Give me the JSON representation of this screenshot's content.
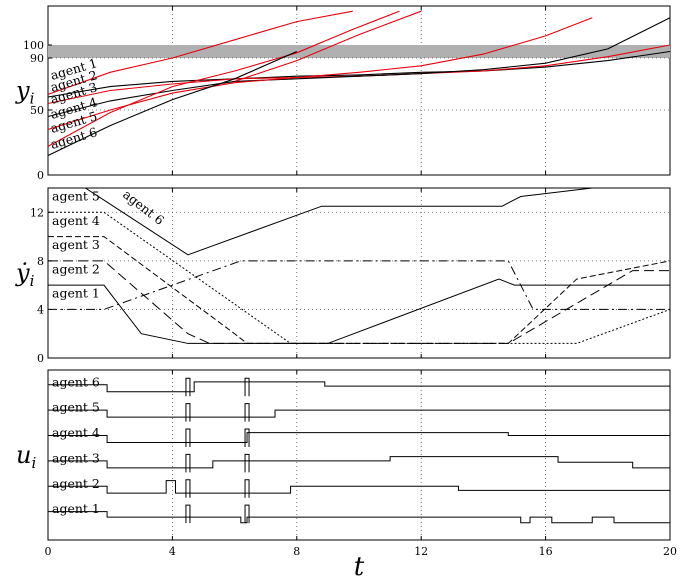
{
  "chart_data": [
    {
      "type": "line",
      "title": "",
      "xlabel": "",
      "ylabel_main": "y",
      "ylabel_sub": "i",
      "xlim": [
        0,
        20
      ],
      "ylim": [
        0,
        130
      ],
      "yticks": [
        "0",
        "50",
        "90",
        "100"
      ],
      "grid": "dotted",
      "band": {
        "y0": 90,
        "y1": 100,
        "color": "#b0b0b0"
      },
      "series": [
        {
          "name": "agent 1",
          "color": "#000000",
          "x": [
            0,
            2,
            4,
            6,
            8,
            10,
            12,
            14,
            16,
            18,
            20
          ],
          "y": [
            60,
            68,
            72,
            74,
            76,
            77,
            79,
            80,
            83,
            88,
            95
          ]
        },
        {
          "name": "agent 2",
          "color": "#e8000b",
          "x": [
            0,
            2,
            4,
            6,
            8,
            10,
            12,
            14,
            16,
            18,
            20
          ],
          "y": [
            55,
            65,
            70,
            74,
            75,
            76,
            78,
            80,
            84,
            91,
            100
          ]
        },
        {
          "name": "agent 3",
          "color": "#000000",
          "x": [
            0,
            2,
            4,
            6,
            8,
            10,
            12,
            14,
            16,
            18,
            20
          ],
          "y": [
            45,
            57,
            65,
            72,
            74,
            76,
            78,
            81,
            86,
            97,
            121
          ]
        },
        {
          "name": "agent 4",
          "color": "#e8000b",
          "x": [
            0,
            2,
            4,
            6,
            8,
            10,
            12,
            14,
            16,
            17.5
          ],
          "y": [
            35,
            50,
            63,
            71,
            75,
            79,
            84,
            93,
            107,
            121
          ]
        },
        {
          "name": "agent 5",
          "color": "#e8000b",
          "x": [
            0,
            2,
            4,
            6,
            8,
            9.8,
            11.3
          ],
          "y": [
            22,
            48,
            68,
            80,
            94,
            112,
            126
          ]
        },
        {
          "name": "agent 6",
          "color": "#000000",
          "x": [
            0,
            2,
            4,
            6,
            8
          ],
          "y": [
            15,
            38,
            58,
            74,
            95
          ]
        },
        {
          "name": "",
          "color": "#e8000b",
          "x": [
            0,
            2,
            4,
            6,
            8,
            9.8
          ],
          "y": [
            62,
            79,
            90,
            104,
            118,
            126
          ]
        },
        {
          "name": "",
          "color": "#e8000b",
          "x": [
            6,
            8,
            10,
            12
          ],
          "y": [
            72,
            88,
            108,
            126
          ]
        }
      ],
      "labels": [
        "agent 1",
        "agent 2",
        "agent 3",
        "agent 4",
        "agent 5",
        "agent 6"
      ]
    },
    {
      "type": "line",
      "title": "",
      "ylabel_main": "ẏ",
      "ylabel_sub": "i",
      "xlim": [
        0,
        20
      ],
      "ylim": [
        0,
        14
      ],
      "yticks": [
        "0",
        "4",
        "8",
        "12"
      ],
      "grid": "dotted",
      "series": [
        {
          "name": "agent 1",
          "dash": "9 4 2 4",
          "x": [
            0,
            1.8,
            6.2,
            14.8,
            15.6,
            20
          ],
          "y": [
            4,
            4,
            8,
            8,
            4,
            4
          ]
        },
        {
          "name": "agent 2",
          "dash": "",
          "x": [
            0,
            1.8,
            3,
            4.5,
            6.5,
            9.0,
            14.5,
            15.0,
            20
          ],
          "y": [
            6,
            6,
            2,
            1.2,
            1.2,
            1.2,
            6.5,
            6,
            6
          ]
        },
        {
          "name": "agent 3",
          "dash": "10 5",
          "x": [
            0,
            1.8,
            4.5,
            5.2,
            14.8,
            18.8,
            20
          ],
          "y": [
            8,
            8,
            2,
            1.2,
            1.2,
            7.2,
            7.2
          ]
        },
        {
          "name": "agent 4",
          "dash": "6 3",
          "x": [
            0,
            1.8,
            6.0,
            6.4,
            14.8,
            17.0,
            20
          ],
          "y": [
            10,
            10,
            2,
            1.2,
            1.2,
            6.5,
            8
          ]
        },
        {
          "name": "agent 5",
          "dash": "2 2",
          "x": [
            0,
            1.8,
            7.8,
            8.2,
            15.8,
            17.0,
            20
          ],
          "y": [
            12,
            12,
            1.2,
            1.2,
            1.2,
            1.2,
            4
          ]
        },
        {
          "name": "agent 6",
          "dash": "",
          "x": [
            0,
            1.2,
            4.5,
            8.8,
            14.6,
            15.2,
            17.5,
            20
          ],
          "y": [
            14,
            14,
            8.5,
            12.5,
            12.5,
            13.3,
            14,
            14
          ]
        }
      ],
      "labels": [
        "agent 1",
        "agent 2",
        "agent 3",
        "agent 4",
        "agent 5",
        "agent 6"
      ]
    },
    {
      "type": "line",
      "title": "",
      "ylabel_main": "u",
      "ylabel_sub": "i",
      "xlabel": "t",
      "xlim": [
        0,
        20
      ],
      "xticks": [
        "0",
        "4",
        "8",
        "12",
        "16",
        "20"
      ],
      "grid": "dotted",
      "series": [
        {
          "name": "agent 1",
          "x": [
            0,
            1.9,
            1.9,
            6.2,
            6.2,
            6.4,
            6.4,
            15.2,
            15.2,
            15.5,
            15.5,
            16.2,
            16.2,
            17.5,
            17.5,
            18.2,
            18.2,
            20
          ],
          "y": [
            1,
            1,
            0.6,
            0.6,
            0.2,
            0.2,
            0.6,
            0.6,
            0.2,
            0.2,
            0.6,
            0.6,
            0.2,
            0.2,
            0.6,
            0.6,
            0.2,
            0.2
          ]
        },
        {
          "name": "agent 2",
          "x": [
            0,
            1.9,
            1.9,
            3.8,
            3.8,
            4.1,
            4.1,
            7.8,
            7.8,
            13.2,
            13.2,
            20
          ],
          "y": [
            1,
            1,
            0.5,
            0.5,
            1.4,
            1.4,
            0.5,
            0.5,
            1,
            1,
            0.7,
            0.7
          ]
        },
        {
          "name": "agent 3",
          "x": [
            0,
            1.9,
            1.9,
            5.3,
            5.3,
            11,
            11,
            16.4,
            16.4,
            18.8,
            18.8,
            20
          ],
          "y": [
            1,
            1,
            0.5,
            0.5,
            1,
            1,
            1.3,
            1.3,
            0.9,
            0.9,
            0.5,
            0.5
          ]
        },
        {
          "name": "agent 4",
          "x": [
            0,
            1.9,
            1.9,
            6.4,
            6.4,
            14.8,
            14.8,
            20
          ],
          "y": [
            1,
            1,
            0.5,
            0.5,
            1.2,
            1.2,
            1,
            1
          ]
        },
        {
          "name": "agent 5",
          "x": [
            0,
            1.9,
            1.9,
            7.3,
            7.3,
            20
          ],
          "y": [
            1,
            1,
            0.5,
            0.5,
            1,
            1
          ]
        },
        {
          "name": "agent 6",
          "x": [
            0,
            1.9,
            1.9,
            4.7,
            4.7,
            8.9,
            8.9,
            20
          ],
          "y": [
            1,
            1,
            0.5,
            0.5,
            1.2,
            1.2,
            0.9,
            0.9
          ]
        }
      ],
      "labels": [
        "agent 1",
        "agent 2",
        "agent 3",
        "agent 4",
        "agent 5",
        "agent 6"
      ]
    }
  ]
}
